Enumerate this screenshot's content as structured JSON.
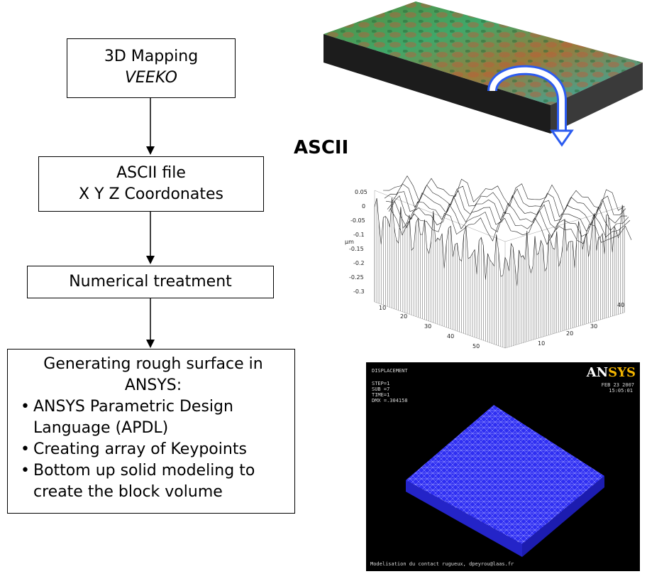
{
  "flow": {
    "step1": {
      "line1": "3D Mapping",
      "line2": "VEEKO"
    },
    "step2": {
      "line1": "ASCII file",
      "line2": "X Y Z Coordonates"
    },
    "step3": {
      "line1": "Numerical treatment"
    },
    "step4": {
      "title": "Generating rough surface in ANSYS:",
      "bullets": [
        "ANSYS Parametric Design Language (APDL)",
        "Creating array of Keypoints",
        "Bottom up solid modeling to create the block volume"
      ]
    }
  },
  "ascii_label": "ASCII",
  "plot": {
    "z_ticks": [
      "0.05",
      "0",
      "-0.05",
      "-0.1",
      "-0.15",
      "-0.2",
      "-0.25",
      "-0.3"
    ],
    "z_label": "µm",
    "x_ticks": [
      "10",
      "20",
      "30",
      "40",
      "50"
    ],
    "y_ticks": [
      "10",
      "20",
      "30",
      "40"
    ]
  },
  "ansys": {
    "title": "DISPLACEMENT",
    "step": "STEP=1",
    "sub": "SUB =7",
    "time": "TIME=1",
    "dmx": "DMX =.304158",
    "date": "FEB 23 2007",
    "clock": "15:05:01",
    "footer": "Modelisation du contact rugueux, dpeyrou@laas.fr",
    "brand_a": "AN",
    "brand_b": "SYS",
    "mesh_color": "#3a3aff"
  }
}
